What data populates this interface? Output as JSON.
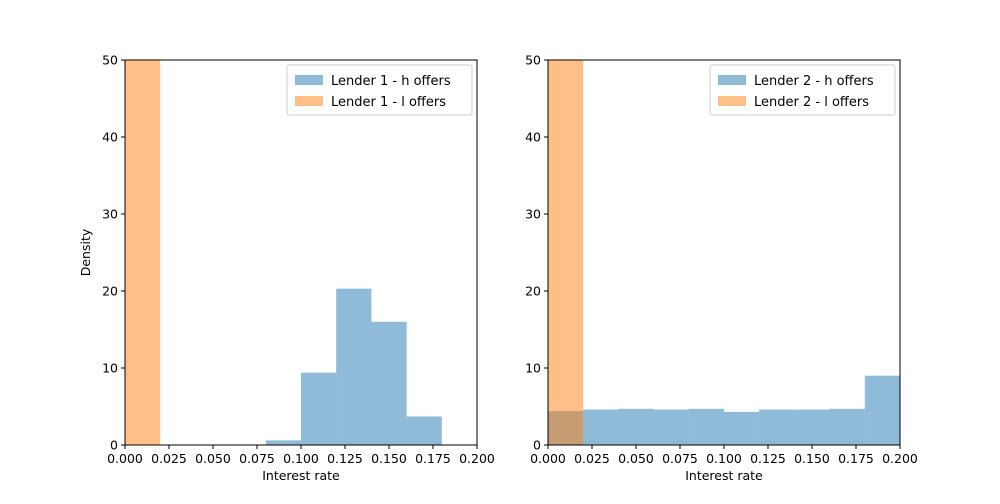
{
  "chart_data": [
    {
      "type": "histogram",
      "xlabel": "Interest rate",
      "ylabel": "Density",
      "xlim": [
        0,
        0.2
      ],
      "ylim": [
        0,
        50
      ],
      "xticks": [
        "0.000",
        "0.025",
        "0.050",
        "0.075",
        "0.100",
        "0.125",
        "0.150",
        "0.175",
        "0.200"
      ],
      "yticks": [
        "0",
        "10",
        "20",
        "30",
        "40",
        "50"
      ],
      "legend_position": "top-right",
      "series": [
        {
          "name": "Lender 1 - h offers",
          "color": "#1f77b4",
          "opacity": 0.5,
          "bins": [
            {
              "x0": 0.08,
              "x1": 0.1,
              "value": 0.6
            },
            {
              "x0": 0.1,
              "x1": 0.12,
              "value": 9.4
            },
            {
              "x0": 0.12,
              "x1": 0.14,
              "value": 20.3
            },
            {
              "x0": 0.14,
              "x1": 0.16,
              "value": 16.0
            },
            {
              "x0": 0.16,
              "x1": 0.18,
              "value": 3.7
            }
          ]
        },
        {
          "name": "Lender 1 - l offers",
          "color": "#ff7f0e",
          "opacity": 0.5,
          "bins": [
            {
              "x0": 0.0,
              "x1": 0.02,
              "value": 52
            }
          ]
        }
      ]
    },
    {
      "type": "histogram",
      "xlabel": "Interest rate",
      "ylabel": "",
      "xlim": [
        0,
        0.2
      ],
      "ylim": [
        0,
        50
      ],
      "xticks": [
        "0.000",
        "0.025",
        "0.050",
        "0.075",
        "0.100",
        "0.125",
        "0.150",
        "0.175",
        "0.200"
      ],
      "yticks": [
        "0",
        "10",
        "20",
        "30",
        "40",
        "50"
      ],
      "legend_position": "top-right",
      "series": [
        {
          "name": "Lender 2 - h offers",
          "color": "#1f77b4",
          "opacity": 0.5,
          "bins": [
            {
              "x0": 0.0,
              "x1": 0.02,
              "value": 4.4
            },
            {
              "x0": 0.02,
              "x1": 0.04,
              "value": 4.6
            },
            {
              "x0": 0.04,
              "x1": 0.06,
              "value": 4.7
            },
            {
              "x0": 0.06,
              "x1": 0.08,
              "value": 4.6
            },
            {
              "x0": 0.08,
              "x1": 0.1,
              "value": 4.7
            },
            {
              "x0": 0.1,
              "x1": 0.12,
              "value": 4.3
            },
            {
              "x0": 0.12,
              "x1": 0.14,
              "value": 4.6
            },
            {
              "x0": 0.14,
              "x1": 0.16,
              "value": 4.6
            },
            {
              "x0": 0.16,
              "x1": 0.18,
              "value": 4.7
            },
            {
              "x0": 0.18,
              "x1": 0.2,
              "value": 9.0
            }
          ]
        },
        {
          "name": "Lender 2 - l offers",
          "color": "#ff7f0e",
          "opacity": 0.5,
          "bins": [
            {
              "x0": 0.0,
              "x1": 0.02,
              "value": 52
            }
          ]
        }
      ]
    }
  ]
}
